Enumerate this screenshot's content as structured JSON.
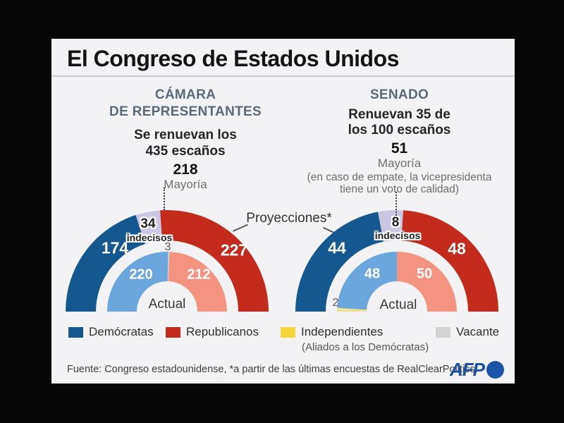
{
  "title": "El Congreso de Estados Unidos",
  "sections": {
    "house": {
      "header_line1": "CÁMARA",
      "header_line2": "DE REPRESENTANTES",
      "subtitle_line1": "Se renuevan los",
      "subtitle_line2": "435 escaños",
      "majority_value": "218",
      "majority_label": "Mayoría"
    },
    "senate": {
      "header": "SENADO",
      "subtitle_line1": "Renuevan 35 de",
      "subtitle_line2": "los 100 escaños",
      "majority_value": "51",
      "majority_label": "Mayoría",
      "majority_note_line1": "(en caso de empate, la vicepresidenta",
      "majority_note_line2": "tiene un voto de calidad)"
    }
  },
  "proyecciones_label": "Proyecciones*",
  "actual_label": "Actual",
  "indecisos_label": "indecisos",
  "colors": {
    "dem": "#15588f",
    "rep": "#c32b1d",
    "dem_light": "#6ba7dc",
    "rep_light": "#f29480",
    "undecided": "#cbc7e3",
    "vacant": "#d3d3d3",
    "independent": "#f8d63d",
    "independent_light": "#f0df8d",
    "afp_blue": "#1c55a8"
  },
  "chart_data": [
    {
      "type": "donut-semicircle",
      "title": "CÁMARA DE REPRESENTANTES",
      "total": 435,
      "renewed_seats": 435,
      "majority": 218,
      "rings": [
        {
          "name": "Proyecciones",
          "radius": "outer",
          "segments": [
            {
              "label": "Demócratas",
              "value": 174,
              "color_key": "dem"
            },
            {
              "label": "indecisos",
              "value": 34,
              "color_key": "undecided"
            },
            {
              "label": "Republicanos",
              "value": 227,
              "color_key": "rep"
            }
          ]
        },
        {
          "name": "Actual",
          "radius": "inner",
          "segments": [
            {
              "label": "Demócratas",
              "value": 220,
              "color_key": "dem_light"
            },
            {
              "label": "Vacante",
              "value": 3,
              "color_key": "vacant"
            },
            {
              "label": "Republicanos",
              "value": 212,
              "color_key": "rep_light"
            }
          ]
        }
      ]
    },
    {
      "type": "donut-semicircle",
      "title": "SENADO",
      "total": 100,
      "renewed_seats": 35,
      "majority": 51,
      "rings": [
        {
          "name": "Proyecciones",
          "radius": "outer",
          "segments": [
            {
              "label": "Demócratas",
              "value": 44,
              "color_key": "dem"
            },
            {
              "label": "indecisos",
              "value": 8,
              "color_key": "undecided"
            },
            {
              "label": "Republicanos",
              "value": 48,
              "color_key": "rep"
            }
          ]
        },
        {
          "name": "Actual",
          "radius": "inner",
          "segments": [
            {
              "label": "Independientes",
              "value": 2,
              "color_key": "independent_light"
            },
            {
              "label": "Demócratas",
              "value": 48,
              "color_key": "dem_light"
            },
            {
              "label": "Republicanos",
              "value": 50,
              "color_key": "rep_light"
            }
          ]
        }
      ]
    }
  ],
  "legend": [
    {
      "label": "Demócratas",
      "color_key": "dem"
    },
    {
      "label": "Republicanos",
      "color_key": "rep"
    },
    {
      "label": "Independientes",
      "sub": "(Aliados a los Demócratas)",
      "color_key": "independent"
    },
    {
      "label": "Vacante",
      "color_key": "vacant"
    }
  ],
  "footer": {
    "source": "Fuente:  Congreso estadounidense, *a partir de las últimas encuestas de RealClearPolitics",
    "brand": "AFP"
  }
}
